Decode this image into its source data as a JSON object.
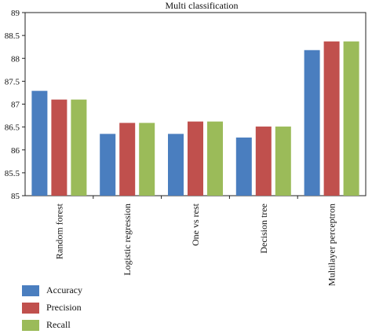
{
  "chart_data": {
    "type": "bar",
    "title": "Multi classification",
    "xlabel": "",
    "ylabel": "",
    "ylim": [
      85,
      89
    ],
    "yticks": [
      85,
      85.5,
      86,
      86.5,
      87,
      87.5,
      88,
      88.5,
      89
    ],
    "ytick_labels": [
      "85",
      "85.5",
      "86",
      "86.5",
      "87",
      "87.5",
      "88",
      "88.5",
      "89"
    ],
    "grid": false,
    "legend_position": "bottom-left",
    "categories": [
      "Random forest",
      "Logistic regression",
      "One vs rest",
      "Decision tree",
      "Multilayer perceptron"
    ],
    "series": [
      {
        "name": "Accuracy",
        "color": "#4a7ebf",
        "values": [
          87.29,
          86.35,
          86.35,
          86.27,
          88.18
        ]
      },
      {
        "name": "Precision",
        "color": "#c0504d",
        "values": [
          87.1,
          86.59,
          86.62,
          86.51,
          88.37
        ]
      },
      {
        "name": "Recall",
        "color": "#9bbb59",
        "values": [
          87.1,
          86.59,
          86.62,
          86.51,
          88.37
        ]
      }
    ]
  }
}
